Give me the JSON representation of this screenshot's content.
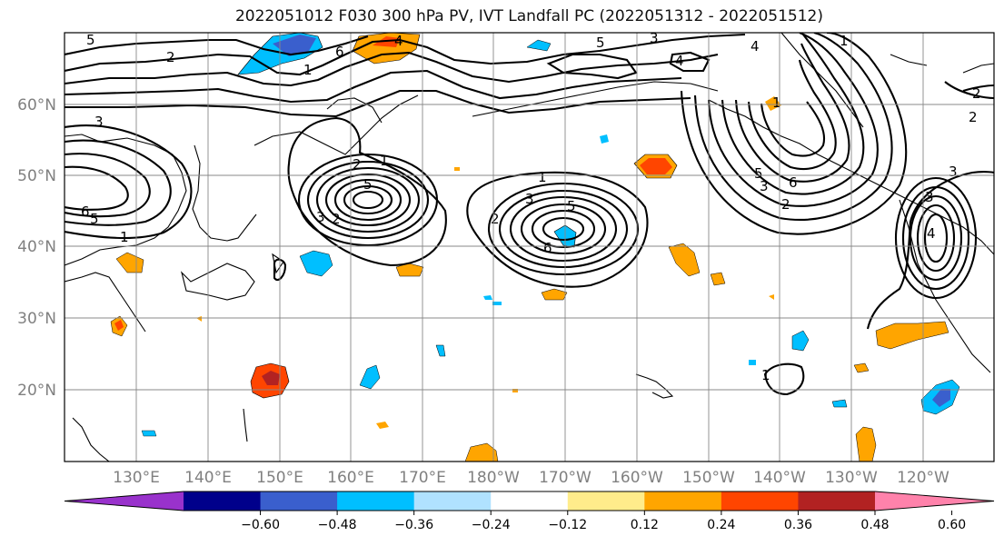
{
  "title": "2022051012 F030 300 hPa PV, IVT Landfall PC (2022051312 - 2022051512)",
  "lat_labels": [
    "60°N",
    "50°N",
    "40°N",
    "30°N",
    "20°N"
  ],
  "lon_labels": [
    "130°E",
    "140°E",
    "150°E",
    "160°E",
    "170°E",
    "180°W",
    "170°W",
    "160°W",
    "150°W",
    "140°W",
    "130°W",
    "120°W"
  ],
  "colorbar": {
    "tick_labels": [
      "−0.60",
      "−0.48",
      "−0.36",
      "−0.24",
      "−0.12",
      "0.12",
      "0.24",
      "0.36",
      "0.48",
      "0.60"
    ],
    "levels": [
      -0.6,
      -0.48,
      -0.36,
      -0.24,
      -0.12,
      0.12,
      0.24,
      0.36,
      0.48,
      0.6
    ],
    "colors": [
      "#9932CC",
      "#00008B",
      "#3A5FCD",
      "#00BFFF",
      "#B0E2FF",
      "#FFFFFF",
      "#FFEC8B",
      "#FFA500",
      "#FF4500",
      "#B22222",
      "#FF82AB"
    ]
  },
  "contour_labels": [
    "5",
    "2",
    "1",
    "6",
    "4",
    "3",
    "2",
    "1",
    "5",
    "3",
    "2",
    "1",
    "3",
    "5",
    "6",
    "1",
    "2",
    "3",
    "5",
    "6",
    "4",
    "3",
    "1",
    "4",
    "2",
    "5",
    "3",
    "1",
    "5",
    "6",
    "2",
    "3",
    "4",
    "1",
    "2"
  ]
}
